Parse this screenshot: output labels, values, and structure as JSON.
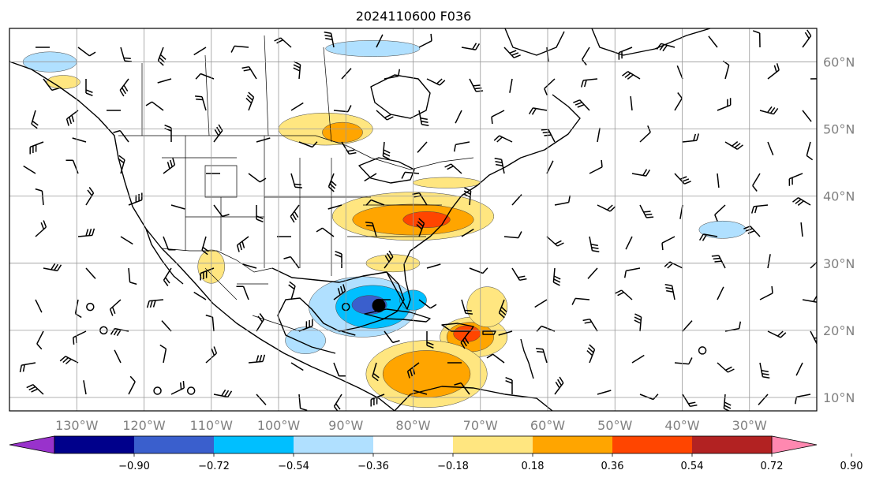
{
  "title": "2024110600 F036",
  "map": {
    "lon_range": [
      -140,
      -20
    ],
    "lat_range": [
      8,
      65
    ],
    "lon_ticks": [
      {
        "value": -130,
        "label": "130°W"
      },
      {
        "value": -120,
        "label": "120°W"
      },
      {
        "value": -110,
        "label": "110°W"
      },
      {
        "value": -100,
        "label": "100°W"
      },
      {
        "value": -90,
        "label": "90°W"
      },
      {
        "value": -80,
        "label": "80°W"
      },
      {
        "value": -70,
        "label": "70°W"
      },
      {
        "value": -60,
        "label": "60°W"
      },
      {
        "value": -50,
        "label": "50°W"
      },
      {
        "value": -40,
        "label": "40°W"
      },
      {
        "value": -30,
        "label": "30°W"
      }
    ],
    "lat_ticks": [
      {
        "value": 60,
        "label": "60°N"
      },
      {
        "value": 50,
        "label": "50°N"
      },
      {
        "value": 40,
        "label": "40°N"
      },
      {
        "value": 30,
        "label": "30°N"
      },
      {
        "value": 20,
        "label": "20°N"
      },
      {
        "value": 10,
        "label": "10°N"
      }
    ],
    "grid": true,
    "storm_marker": {
      "lon": -85.1,
      "lat": 23.7
    }
  },
  "colorbar": {
    "extend": "both",
    "levels": [
      "−0.90",
      "−0.72",
      "−0.54",
      "−0.36",
      "−0.18",
      "0.18",
      "0.36",
      "0.54",
      "0.72",
      "0.90"
    ],
    "colors": [
      "#9932cc",
      "#00008b",
      "#3a5fcd",
      "#00bfff",
      "#b0e0ff",
      "#ffffff",
      "#ffe680",
      "#ffa500",
      "#ff4500",
      "#b22222",
      "#ff88b0"
    ]
  },
  "shading": [
    {
      "lon": -87.5,
      "lat": 23.5,
      "rlon": 8,
      "rlat": 4.5,
      "color": "#b0e0ff"
    },
    {
      "lon": -86,
      "lat": 23.5,
      "rlon": 5.5,
      "rlat": 3.2,
      "color": "#00bfff"
    },
    {
      "lon": -86.5,
      "lat": 23.8,
      "rlon": 2.6,
      "rlat": 1.4,
      "color": "#3a5fcd"
    },
    {
      "lon": -96,
      "lat": 18.5,
      "rlon": 3,
      "rlat": 2,
      "color": "#b0e0ff"
    },
    {
      "lon": -80,
      "lat": 24.5,
      "rlon": 2,
      "rlat": 1.5,
      "color": "#00bfff"
    },
    {
      "lon": -80,
      "lat": 37,
      "rlon": 12,
      "rlat": 3.6,
      "color": "#ffe680"
    },
    {
      "lon": -80,
      "lat": 36.5,
      "rlon": 9,
      "rlat": 2.3,
      "color": "#ffa500"
    },
    {
      "lon": -78,
      "lat": 36.5,
      "rlon": 3.5,
      "rlat": 1.2,
      "color": "#ff4500"
    },
    {
      "lon": -93,
      "lat": 50,
      "rlon": 7,
      "rlat": 2.4,
      "color": "#ffe680"
    },
    {
      "lon": -90.5,
      "lat": 49.5,
      "rlon": 3,
      "rlat": 1.5,
      "color": "#ffa500"
    },
    {
      "lon": -71,
      "lat": 19,
      "rlon": 5,
      "rlat": 3,
      "color": "#ffe680"
    },
    {
      "lon": -71.5,
      "lat": 19,
      "rlon": 3.5,
      "rlat": 2.2,
      "color": "#ffa500"
    },
    {
      "lon": -72,
      "lat": 19.5,
      "rlon": 2,
      "rlat": 1.2,
      "color": "#ff4500"
    },
    {
      "lon": -78,
      "lat": 13.5,
      "rlon": 9,
      "rlat": 5,
      "color": "#ffe680"
    },
    {
      "lon": -78,
      "lat": 13.5,
      "rlon": 6.5,
      "rlat": 3.5,
      "color": "#ffa500"
    },
    {
      "lon": -69,
      "lat": 23.5,
      "rlon": 3,
      "rlat": 3,
      "color": "#ffe680"
    },
    {
      "lon": -110,
      "lat": 29.5,
      "rlon": 2,
      "rlat": 2.5,
      "color": "#ffe680"
    },
    {
      "lon": -34,
      "lat": 35,
      "rlon": 3.5,
      "rlat": 1.3,
      "color": "#b0e0ff"
    },
    {
      "lon": -86,
      "lat": 62,
      "rlon": 7,
      "rlat": 1.2,
      "color": "#b0e0ff"
    },
    {
      "lon": -134,
      "lat": 60,
      "rlon": 4,
      "rlat": 1.5,
      "color": "#b0e0ff"
    },
    {
      "lon": -132,
      "lat": 57,
      "rlon": 2.5,
      "rlat": 1,
      "color": "#ffe680"
    },
    {
      "lon": -83,
      "lat": 30,
      "rlon": 4,
      "rlat": 1.3,
      "color": "#ffe680"
    },
    {
      "lon": -75,
      "lat": 42,
      "rlon": 5,
      "rlat": 0.8,
      "color": "#ffe680"
    }
  ]
}
